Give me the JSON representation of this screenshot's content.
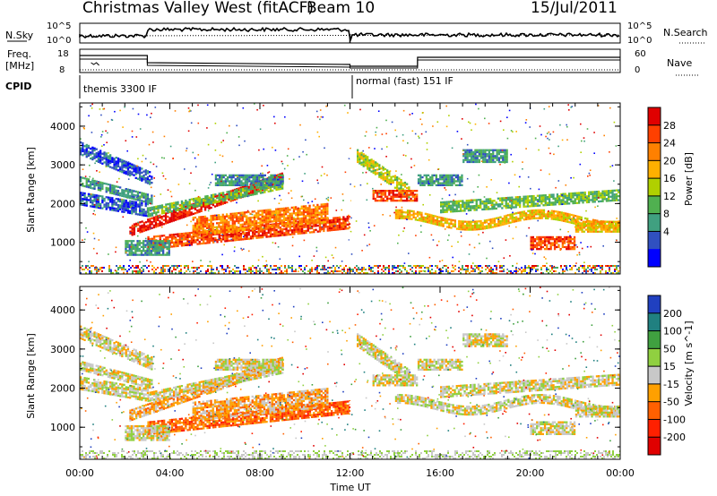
{
  "header": {
    "title": "Christmas Valley West (fitACF)",
    "beam": "Beam 10",
    "date": "15/Jul/2011"
  },
  "strip": {
    "nsky_label": "N.Sky",
    "nsky_ticks": [
      "10^5",
      "10^0"
    ],
    "nsearch_label": "N.Search",
    "nsearch_ticks": [
      "10^5",
      "10^0"
    ],
    "freq_label": "Freq.",
    "freq_unit": "[MHz]",
    "freq_ticks": [
      "18",
      "8"
    ],
    "nave_label": "Nave",
    "nave_ticks": [
      "60",
      "0"
    ],
    "cpid_label": "CPID",
    "cpid_modes": [
      {
        "name": "themis 3300 IF",
        "start_hour": 0,
        "end_hour": 12
      },
      {
        "name": "normal (fast) 151 IF",
        "start_hour": 12,
        "end_hour": 24
      }
    ]
  },
  "chart_data": [
    {
      "type": "heatmap",
      "panel": "power",
      "ylabel": "Slant Range [km]",
      "xlabel": "",
      "x_ticks": [
        "00:00",
        "04:00",
        "08:00",
        "12:00",
        "16:00",
        "20:00",
        "00:00"
      ],
      "x_range_hours": [
        0,
        24
      ],
      "y_ticks": [
        1000,
        2000,
        3000,
        4000
      ],
      "ylim": [
        180,
        4600
      ],
      "colorbar": {
        "label": "Power [dB]",
        "ticks": [
          "28",
          "24",
          "20",
          "16",
          "12",
          "8",
          "4"
        ],
        "colors": [
          "#e00000",
          "#ff4000",
          "#ff8000",
          "#ffb000",
          "#b0d000",
          "#50b050",
          "#40a080",
          "#3050c0",
          "#0000ff"
        ]
      }
    },
    {
      "type": "heatmap",
      "panel": "velocity",
      "ylabel": "Slant Range [km]",
      "xlabel": "Time UT",
      "x_ticks": [
        "00:00",
        "04:00",
        "08:00",
        "12:00",
        "16:00",
        "20:00",
        "00:00"
      ],
      "x_range_hours": [
        0,
        24
      ],
      "y_ticks": [
        1000,
        2000,
        3000,
        4000
      ],
      "ylim": [
        180,
        4600
      ],
      "colorbar": {
        "label": "Velocity [m s^-1]",
        "ticks": [
          "200",
          "100",
          "50",
          "15",
          "-15",
          "-50",
          "-100",
          "-200"
        ],
        "colors": [
          "#2040c0",
          "#208080",
          "#40a040",
          "#90d040",
          "#c8c8c8",
          "#ffa000",
          "#ff6000",
          "#ff2000",
          "#e00000"
        ]
      }
    }
  ]
}
